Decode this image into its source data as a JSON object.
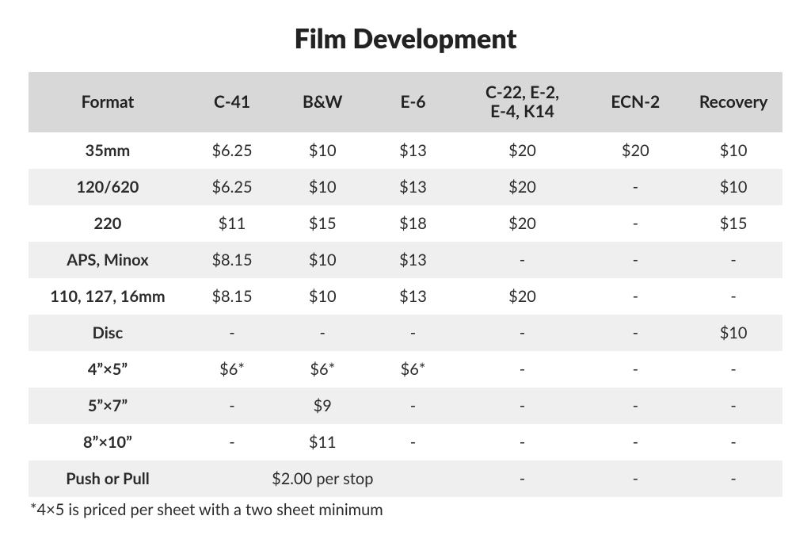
{
  "title": "Film Development",
  "table": {
    "columns": [
      "Format",
      "C-41",
      "B&W",
      "E-6",
      "C-22, E-2,\nE-4, K14",
      "ECN-2",
      "Recovery"
    ],
    "col_widths_pct": [
      21,
      12,
      12,
      12,
      17,
      13,
      13
    ],
    "header_bg": "#d8d8d8",
    "row_even_bg": "#efefef",
    "row_odd_bg": "#ffffff",
    "header_fontsize": 21,
    "cell_fontsize": 20,
    "rows": [
      {
        "format": "35mm",
        "cells": [
          "$6.25",
          "$10",
          "$13",
          "$20",
          "$20",
          "$10"
        ]
      },
      {
        "format": "120/620",
        "cells": [
          "$6.25",
          "$10",
          "$13",
          "$20",
          "-",
          "$10"
        ]
      },
      {
        "format": "220",
        "cells": [
          "$11",
          "$15",
          "$18",
          "$20",
          "-",
          "$15"
        ]
      },
      {
        "format": "APS, Minox",
        "cells": [
          "$8.15",
          "$10",
          "$13",
          "-",
          "-",
          "-"
        ]
      },
      {
        "format": "110, 127, 16mm",
        "cells": [
          "$8.15",
          "$10",
          "$13",
          "$20",
          "-",
          "-"
        ]
      },
      {
        "format": "Disc",
        "cells": [
          "-",
          "-",
          "-",
          "-",
          "-",
          "$10"
        ]
      },
      {
        "format": "4”×5”",
        "cells": [
          "$6*",
          "$6*",
          "$6*",
          "-",
          "-",
          "-"
        ]
      },
      {
        "format": "5”×7”",
        "cells": [
          "-",
          "$9",
          "-",
          "-",
          "-",
          "-"
        ]
      },
      {
        "format": "8”×10”",
        "cells": [
          "-",
          "$11",
          "-",
          "-",
          "-",
          "-"
        ]
      }
    ],
    "push_row": {
      "format": "Push or Pull",
      "merged_label": "$2.00 per stop",
      "merged_span": 3,
      "trailing": [
        "-",
        "-",
        "-"
      ]
    }
  },
  "footnote": "*4×5 is priced per sheet with a two sheet minimum",
  "colors": {
    "text": "#2b2b2b",
    "background": "#ffffff"
  }
}
